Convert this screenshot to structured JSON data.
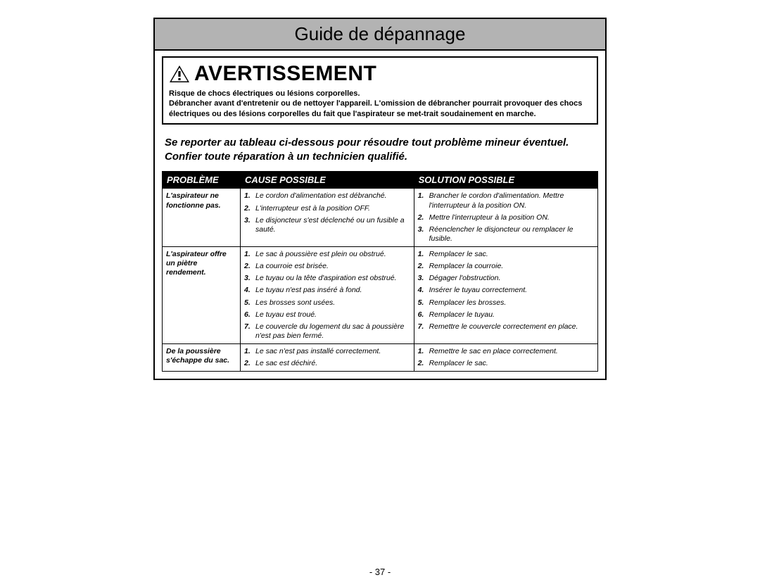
{
  "colors": {
    "title_bg": "#b3b3b3",
    "header_bg": "#000000",
    "header_fg": "#ffffff",
    "page_bg": "#ffffff",
    "text": "#000000"
  },
  "title": "Guide de dépannage",
  "warning": {
    "heading": "AVERTISSEMENT",
    "line1": "Risque de chocs électriques ou lésions corporelles.",
    "line2": "Débrancher avant d'entretenir ou de nettoyer l'appareil. L'omission de débrancher pourrait provoquer des chocs électriques ou des lésions corporelles du fait que l'aspirateur se met-trait soudainement en marche."
  },
  "instruction": "Se reporter au tableau ci-dessous pour résoudre tout problème mineur éventuel. Confier toute réparation à un technicien qualifié.",
  "table": {
    "headers": {
      "c1": "PROBLÈME",
      "c2": "CAUSE POSSIBLE",
      "c3": "SOLUTION POSSIBLE"
    },
    "col_widths": [
      "100px",
      "auto",
      "auto"
    ],
    "rows": [
      {
        "problem": "L'aspirateur ne fonctionne pas.",
        "causes": [
          "Le cordon d'alimentation est débranché.",
          "L'interrupteur est à la position OFF.",
          "Le disjoncteur s'est déclenché ou un fusible a sauté."
        ],
        "solutions": [
          "Brancher le cordon d'alimentation. Mettre l'interrupteur à la position ON.",
          "Mettre l'interrupteur à la position ON.",
          "Réenclencher le disjoncteur ou remplacer le fusible."
        ]
      },
      {
        "problem": "L'aspirateur offre un piètre rendement.",
        "causes": [
          "Le sac à poussière est plein ou obstrué.",
          "La courroie est brisée.",
          "Le tuyau ou la tête d'aspiration est obstrué.",
          "Le tuyau n'est pas inséré à fond.",
          "Les brosses sont usées.",
          "Le tuyau est troué.",
          "Le couvercle du logement du sac à poussière n'est pas bien fermé."
        ],
        "solutions": [
          "Remplacer le sac.",
          "Remplacer la courroie.",
          "Dégager l'obstruction.",
          "Insérer le tuyau correctement.",
          "Remplacer les brosses.",
          "Remplacer le tuyau.",
          "Remettre le couvercle correctement en place."
        ]
      },
      {
        "problem": "De la poussière s'échappe du sac.",
        "causes": [
          "Le sac n'est pas installé correctement.",
          "Le sac est déchiré."
        ],
        "solutions": [
          "Remettre le sac en place correctement.",
          "Remplacer le sac."
        ]
      }
    ]
  },
  "page_number": "- 37 -"
}
